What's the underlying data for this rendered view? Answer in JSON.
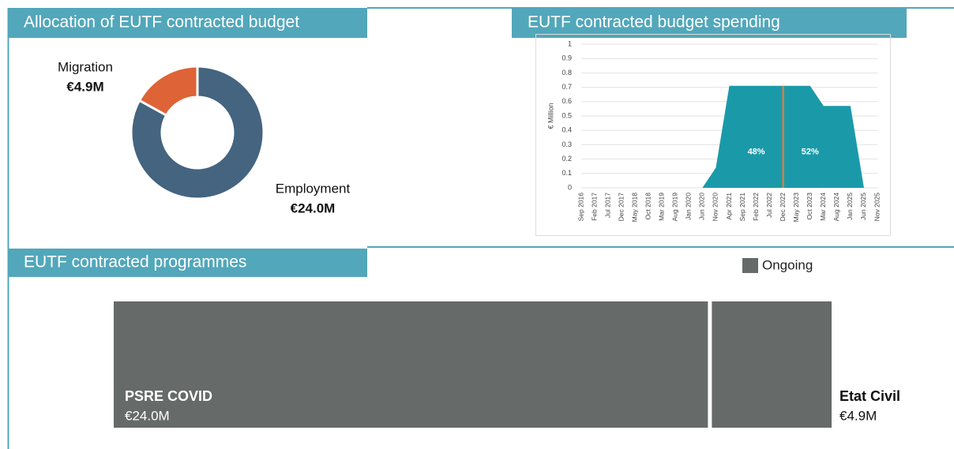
{
  "chart_data": [
    {
      "type": "pie",
      "title": "Allocation of EUTF contracted budget",
      "donut": true,
      "categories": [
        "Migration",
        "Employment"
      ],
      "values": [
        4.9,
        24.0
      ],
      "value_labels": [
        "€4.9M",
        "€24.0M"
      ],
      "colors": [
        "#de6337",
        "#44647f"
      ]
    },
    {
      "type": "area",
      "title": "EUTF contracted budget spending",
      "y_label": "€ Million",
      "categories": [
        "Sep 2016",
        "Feb 2017",
        "Jul 2017",
        "Dec 2017",
        "May 2018",
        "Oct 2018",
        "Mar 2019",
        "Aug 2019",
        "Jan 2020",
        "Jun 2020",
        "Nov 2020",
        "Apr 2021",
        "Sep 2021",
        "Feb 2022",
        "Jul 2022",
        "Dec 2022",
        "May 2023",
        "Oct 2023",
        "Mar 2024",
        "Aug 2024",
        "Jan 2025",
        "Jun 2025",
        "Nov 2025"
      ],
      "values": [
        0,
        0,
        0,
        0,
        0,
        0,
        0,
        0,
        0,
        0,
        0.14,
        0.71,
        0.71,
        0.71,
        0.71,
        0.71,
        0.71,
        0.71,
        0.57,
        0.57,
        0.57,
        0,
        0
      ],
      "color": "#1a9aa9",
      "ylim": [
        0,
        1
      ],
      "yticks": [
        0,
        0.1,
        0.2,
        0.3,
        0.4,
        0.5,
        0.6,
        0.7,
        0.8,
        0.9,
        1
      ],
      "grid": true,
      "vline": {
        "x": "Dec 2022",
        "color": "#d0804a"
      },
      "annotations": [
        {
          "text": "48%",
          "x": "Feb 2022",
          "y": 0.25
        },
        {
          "text": "52%",
          "x": "Oct 2023",
          "y": 0.25
        }
      ]
    },
    {
      "type": "treemap",
      "title": "EUTF contracted programmes",
      "legend": "Ongoing",
      "color": "#666a69",
      "categories": [
        "PSRE COVID",
        "Etat Civil"
      ],
      "values": [
        24.0,
        4.9
      ],
      "value_labels": [
        "€24.0M",
        "€4.9M"
      ]
    }
  ]
}
